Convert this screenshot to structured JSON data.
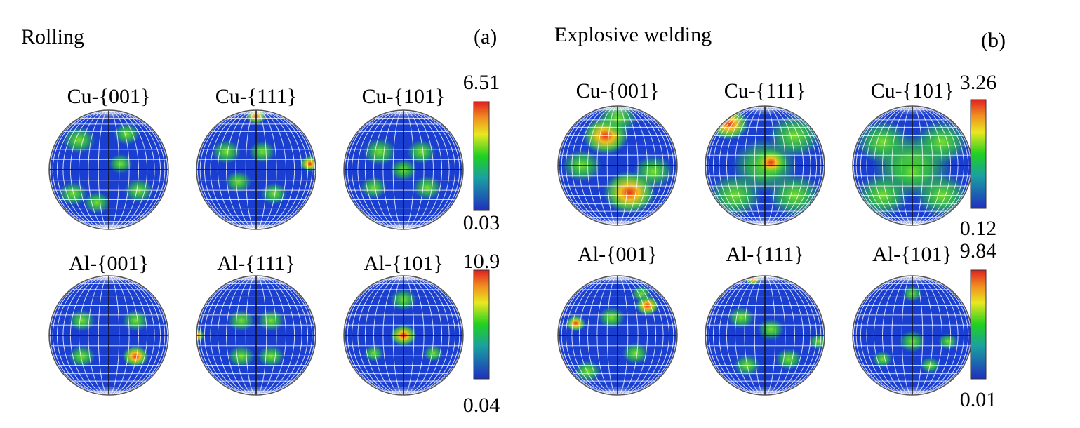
{
  "panels": [
    {
      "title": "Rolling",
      "label": "(a)",
      "rows": [
        {
          "figures": [
            "Cu-{001}",
            "Cu-{111}",
            "Cu-{101}"
          ],
          "colorbar": {
            "max": "6.51",
            "min": "0.03"
          }
        },
        {
          "figures": [
            "Al-{001}",
            "Al-{111}",
            "Al-{101}"
          ],
          "colorbar": {
            "max": "10.9",
            "min": "0.04"
          }
        }
      ]
    },
    {
      "title": "Explosive welding",
      "label": "(b)",
      "rows": [
        {
          "figures": [
            "Cu-{001}",
            "Cu-{111}",
            "Cu-{101}"
          ],
          "colorbar": {
            "max": "3.26",
            "min": "0.12"
          }
        },
        {
          "figures": [
            "Al-{001}",
            "Al-{111}",
            "Al-{101}"
          ],
          "colorbar": {
            "max": "9.84",
            "min": "0.01"
          }
        }
      ]
    }
  ]
}
